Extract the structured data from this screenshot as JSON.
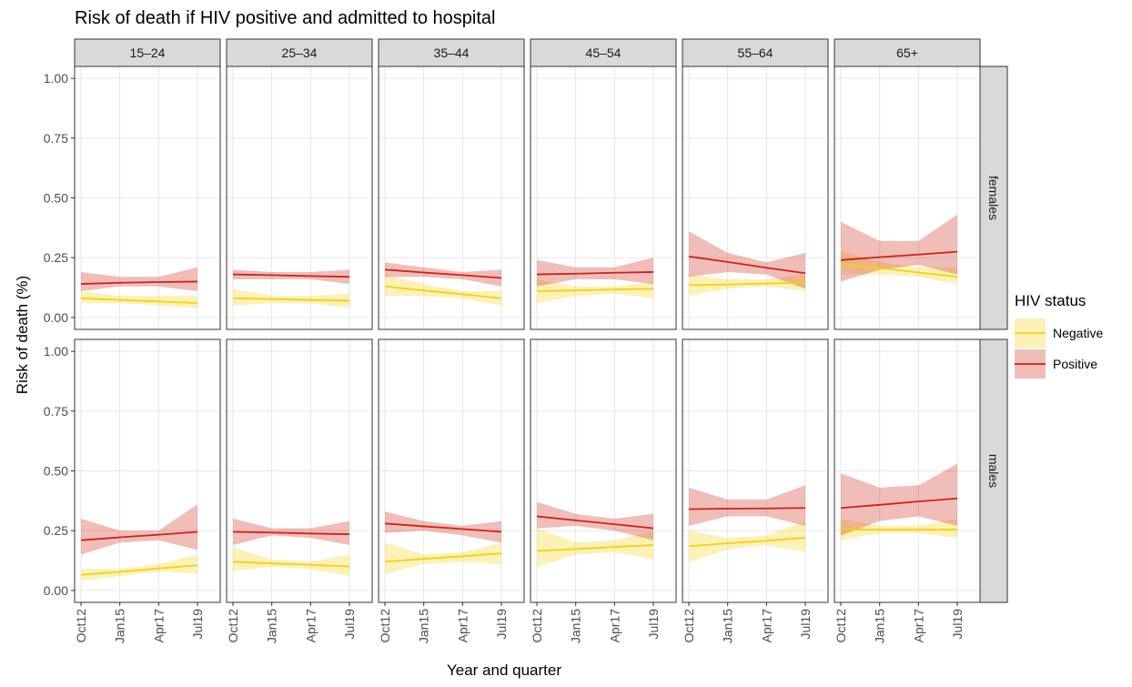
{
  "chart_data": {
    "type": "line",
    "title": "Risk of death if HIV positive and admitted to hospital",
    "x_label": "Year and quarter",
    "y_label": "Risk of death (%)",
    "categories": [
      "Oct12",
      "Jan15",
      "Apr17",
      "Jul19"
    ],
    "ylim": [
      -0.05,
      1.05
    ],
    "yticks": [
      {
        "value": 0,
        "label": "0.00"
      },
      {
        "value": 0.25,
        "label": "0.25"
      },
      {
        "value": 0.5,
        "label": "0.50"
      },
      {
        "value": 0.75,
        "label": "0.75"
      },
      {
        "value": 1,
        "label": "1.00"
      }
    ],
    "grid": true,
    "legend": {
      "title": "HIV status",
      "position": "right",
      "entries": [
        {
          "name": "Negative",
          "color": "#f5d10f"
        },
        {
          "name": "Positive",
          "color": "#cc2418"
        }
      ]
    },
    "columns": [
      "15–24",
      "25–34",
      "35–44",
      "45–54",
      "55–64",
      "65+"
    ],
    "rows": [
      {
        "label": "females",
        "panels": [
          {
            "series": [
              {
                "values": [
                  0.08,
                  0.073,
                  0.067,
                  0.06
                ],
                "lower": [
                  0.06,
                  0.06,
                  0.05,
                  0.04
                ],
                "upper": [
                  0.11,
                  0.09,
                  0.09,
                  0.09
                ]
              },
              {
                "values": [
                  0.14,
                  0.145,
                  0.148,
                  0.15
                ],
                "lower": [
                  0.11,
                  0.13,
                  0.13,
                  0.11
                ],
                "upper": [
                  0.19,
                  0.17,
                  0.17,
                  0.21
                ]
              }
            ]
          },
          {
            "series": [
              {
                "values": [
                  0.08,
                  0.077,
                  0.073,
                  0.07
                ],
                "lower": [
                  0.05,
                  0.06,
                  0.06,
                  0.04
                ],
                "upper": [
                  0.12,
                  0.09,
                  0.09,
                  0.1
                ]
              },
              {
                "values": [
                  0.18,
                  0.177,
                  0.173,
                  0.17
                ],
                "lower": [
                  0.16,
                  0.16,
                  0.16,
                  0.14
                ],
                "upper": [
                  0.2,
                  0.19,
                  0.19,
                  0.2
                ]
              }
            ]
          },
          {
            "series": [
              {
                "values": [
                  0.13,
                  0.113,
                  0.097,
                  0.08
                ],
                "lower": [
                  0.09,
                  0.09,
                  0.08,
                  0.05
                ],
                "upper": [
                  0.18,
                  0.14,
                  0.11,
                  0.11
                ]
              },
              {
                "values": [
                  0.2,
                  0.188,
                  0.177,
                  0.165
                ],
                "lower": [
                  0.17,
                  0.17,
                  0.16,
                  0.13
                ],
                "upper": [
                  0.23,
                  0.21,
                  0.19,
                  0.2
                ]
              }
            ]
          },
          {
            "series": [
              {
                "values": [
                  0.11,
                  0.113,
                  0.117,
                  0.12
                ],
                "lower": [
                  0.06,
                  0.09,
                  0.1,
                  0.08
                ],
                "upper": [
                  0.16,
                  0.13,
                  0.13,
                  0.15
                ]
              },
              {
                "values": [
                  0.18,
                  0.183,
                  0.187,
                  0.19
                ],
                "lower": [
                  0.13,
                  0.16,
                  0.16,
                  0.14
                ],
                "upper": [
                  0.24,
                  0.21,
                  0.21,
                  0.25
                ]
              }
            ]
          },
          {
            "series": [
              {
                "values": [
                  0.135,
                  0.138,
                  0.142,
                  0.145
                ],
                "lower": [
                  0.09,
                  0.12,
                  0.13,
                  0.11
                ],
                "upper": [
                  0.18,
                  0.16,
                  0.16,
                  0.18
                ]
              },
              {
                "values": [
                  0.255,
                  0.232,
                  0.208,
                  0.185
                ],
                "lower": [
                  0.17,
                  0.19,
                  0.18,
                  0.12
                ],
                "upper": [
                  0.36,
                  0.27,
                  0.23,
                  0.27
                ]
              }
            ]
          },
          {
            "series": [
              {
                "values": [
                  0.225,
                  0.207,
                  0.188,
                  0.17
                ],
                "lower": [
                  0.18,
                  0.18,
                  0.17,
                  0.14
                ],
                "upper": [
                  0.28,
                  0.23,
                  0.21,
                  0.21
                ]
              },
              {
                "values": [
                  0.24,
                  0.252,
                  0.263,
                  0.275
                ],
                "lower": [
                  0.15,
                  0.2,
                  0.22,
                  0.18
                ],
                "upper": [
                  0.4,
                  0.32,
                  0.32,
                  0.43
                ]
              }
            ]
          }
        ]
      },
      {
        "label": "males",
        "panels": [
          {
            "series": [
              {
                "values": [
                  0.065,
                  0.078,
                  0.092,
                  0.105
                ],
                "lower": [
                  0.04,
                  0.06,
                  0.08,
                  0.07
                ],
                "upper": [
                  0.09,
                  0.09,
                  0.11,
                  0.15
                ]
              },
              {
                "values": [
                  0.21,
                  0.222,
                  0.233,
                  0.245
                ],
                "lower": [
                  0.15,
                  0.2,
                  0.21,
                  0.17
                ],
                "upper": [
                  0.3,
                  0.25,
                  0.25,
                  0.36
                ]
              }
            ]
          },
          {
            "series": [
              {
                "values": [
                  0.12,
                  0.113,
                  0.107,
                  0.1
                ],
                "lower": [
                  0.08,
                  0.1,
                  0.09,
                  0.06
                ],
                "upper": [
                  0.18,
                  0.13,
                  0.12,
                  0.15
                ]
              },
              {
                "values": [
                  0.245,
                  0.242,
                  0.238,
                  0.235
                ],
                "lower": [
                  0.19,
                  0.23,
                  0.22,
                  0.19
                ],
                "upper": [
                  0.3,
                  0.26,
                  0.26,
                  0.29
                ]
              }
            ]
          },
          {
            "series": [
              {
                "values": [
                  0.12,
                  0.132,
                  0.143,
                  0.155
                ],
                "lower": [
                  0.07,
                  0.11,
                  0.12,
                  0.11
                ],
                "upper": [
                  0.2,
                  0.15,
                  0.16,
                  0.2
                ]
              },
              {
                "values": [
                  0.28,
                  0.268,
                  0.257,
                  0.245
                ],
                "lower": [
                  0.24,
                  0.25,
                  0.23,
                  0.2
                ],
                "upper": [
                  0.33,
                  0.29,
                  0.27,
                  0.29
                ]
              }
            ]
          },
          {
            "series": [
              {
                "values": [
                  0.165,
                  0.173,
                  0.182,
                  0.19
                ],
                "lower": [
                  0.1,
                  0.15,
                  0.16,
                  0.13
                ],
                "upper": [
                  0.26,
                  0.2,
                  0.21,
                  0.25
                ]
              },
              {
                "values": [
                  0.31,
                  0.293,
                  0.277,
                  0.26
                ],
                "lower": [
                  0.26,
                  0.27,
                  0.25,
                  0.21
                ],
                "upper": [
                  0.37,
                  0.32,
                  0.3,
                  0.32
                ]
              }
            ]
          },
          {
            "series": [
              {
                "values": [
                  0.185,
                  0.197,
                  0.208,
                  0.22
                ],
                "lower": [
                  0.12,
                  0.17,
                  0.19,
                  0.16
                ],
                "upper": [
                  0.25,
                  0.22,
                  0.23,
                  0.29
                ]
              },
              {
                "values": [
                  0.34,
                  0.342,
                  0.343,
                  0.345
                ],
                "lower": [
                  0.27,
                  0.31,
                  0.31,
                  0.27
                ],
                "upper": [
                  0.43,
                  0.38,
                  0.38,
                  0.44
                ]
              }
            ]
          },
          {
            "series": [
              {
                "values": [
                  0.255,
                  0.255,
                  0.255,
                  0.255
                ],
                "lower": [
                  0.21,
                  0.24,
                  0.24,
                  0.22
                ],
                "upper": [
                  0.3,
                  0.27,
                  0.27,
                  0.3
                ]
              },
              {
                "values": [
                  0.345,
                  0.358,
                  0.372,
                  0.385
                ],
                "lower": [
                  0.23,
                  0.29,
                  0.31,
                  0.27
                ],
                "upper": [
                  0.49,
                  0.43,
                  0.44,
                  0.53
                ]
              }
            ]
          }
        ]
      }
    ]
  }
}
